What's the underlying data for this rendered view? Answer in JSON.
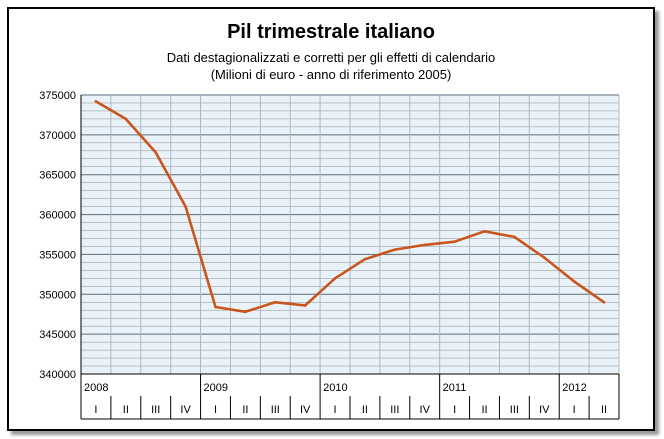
{
  "chart_data": {
    "type": "line",
    "title": "Pil trimestrale italiano",
    "subtitle": "Dati destagionalizzati e corretti per gli effetti di calendario",
    "subtitle2": "(Milioni di euro - anno di riferimento 2005)",
    "xlabel": "",
    "ylabel": "",
    "ylim": [
      340000,
      375000
    ],
    "yticks": [
      375000,
      370000,
      365000,
      360000,
      355000,
      350000,
      345000,
      340000
    ],
    "x": [
      "2008 I",
      "2008 II",
      "2008 III",
      "2008 IV",
      "2009 I",
      "2009 II",
      "2009 III",
      "2009 IV",
      "2010 I",
      "2010 II",
      "2010 III",
      "2010 IV",
      "2011 I",
      "2011 II",
      "2011 III",
      "2011 IV",
      "2012 I",
      "2012 II"
    ],
    "quarters": [
      "I",
      "II",
      "III",
      "IV",
      "I",
      "II",
      "III",
      "IV",
      "I",
      "II",
      "III",
      "IV",
      "I",
      "II",
      "III",
      "IV",
      "I",
      "II"
    ],
    "years": [
      {
        "label": "2008",
        "start": 0
      },
      {
        "label": "2009",
        "start": 4
      },
      {
        "label": "2010",
        "start": 8
      },
      {
        "label": "2011",
        "start": 12
      },
      {
        "label": "2012",
        "start": 16
      }
    ],
    "series": [
      {
        "values": [
          374200,
          372000,
          367800,
          361000,
          348400,
          347800,
          349000,
          348600,
          352000,
          354400,
          355600,
          356200,
          356600,
          357900,
          357200,
          354600,
          351600,
          349000
        ]
      }
    ],
    "grid": true,
    "legend": "none",
    "colors": {
      "line": "#c8561e",
      "plot_bg": "#eaf2f9",
      "grid_major": "#a8b8c8",
      "grid_minor": "#3c3c3c"
    }
  }
}
